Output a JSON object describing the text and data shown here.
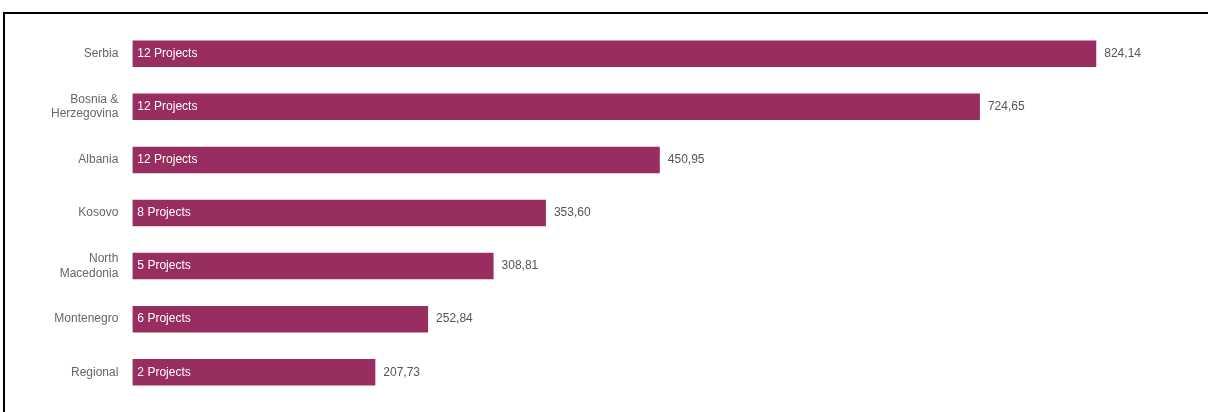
{
  "chart_data": {
    "type": "bar",
    "orientation": "horizontal",
    "categories": [
      "Serbia",
      "Bosnia & Herzegovina",
      "Albania",
      "Kosovo",
      "North Macedonia",
      "Montenegro",
      "Regional"
    ],
    "values": [
      824.14,
      724.65,
      450.95,
      353.6,
      308.81,
      252.84,
      207.73
    ],
    "value_labels": [
      "824,14",
      "724,65",
      "450,95",
      "353,60",
      "308,81",
      "252,84",
      "207,73"
    ],
    "color": "#982d5f",
    "annotations": [
      "12 Projects",
      "12 Projects",
      "12 Projects",
      "8 Projects",
      "5 Projects",
      "6 Projects",
      "2 Projects"
    ],
    "legend": false
  }
}
